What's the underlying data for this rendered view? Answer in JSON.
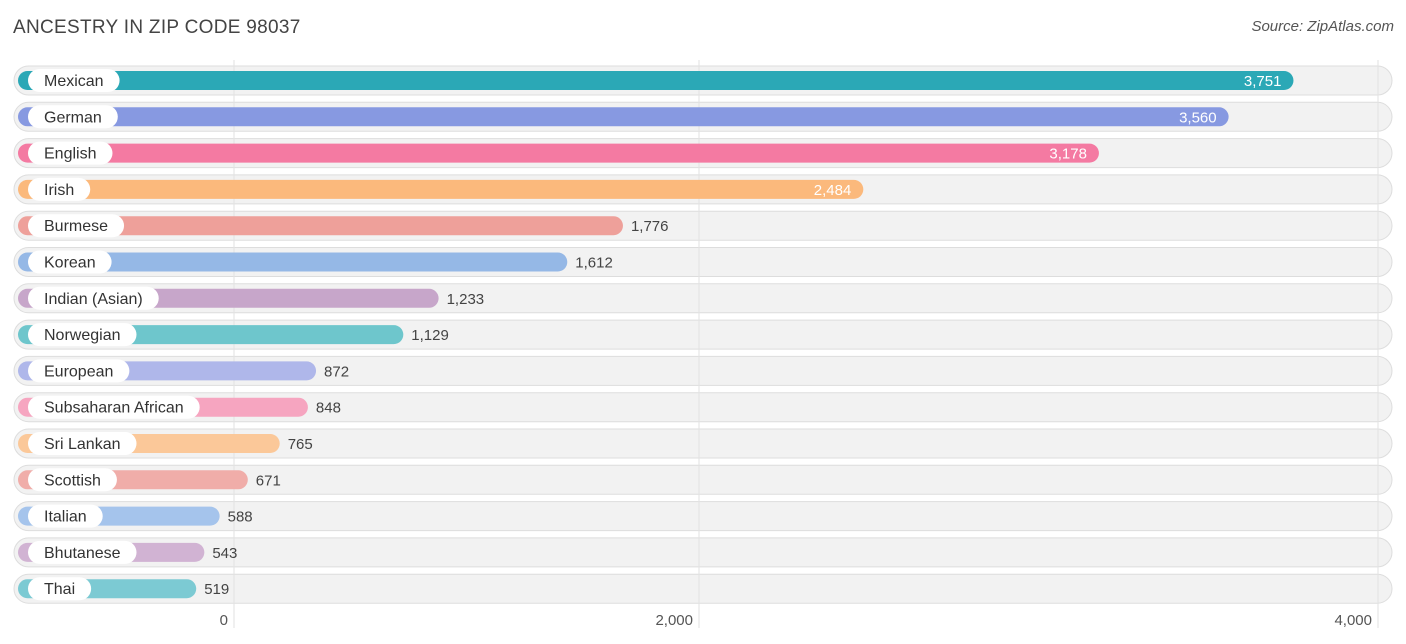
{
  "header": {
    "title": "ANCESTRY IN ZIP CODE 98037",
    "source": "Source: ZipAtlas.com"
  },
  "chart_data": {
    "type": "bar",
    "orientation": "horizontal",
    "title": "ANCESTRY IN ZIP CODE 98037",
    "xlabel": "",
    "ylabel": "",
    "xlim": [
      0,
      4000
    ],
    "ticks": [
      {
        "value": 0,
        "label": "0"
      },
      {
        "value": 2000,
        "label": "2,000"
      },
      {
        "value": 4000,
        "label": "4,000"
      }
    ],
    "grid": true,
    "bars": [
      {
        "category": "Mexican",
        "value": 3751,
        "label": "3,751",
        "color": "#2ba8b6"
      },
      {
        "category": "German",
        "value": 3560,
        "label": "3,560",
        "color": "#8799e1"
      },
      {
        "category": "English",
        "value": 3178,
        "label": "3,178",
        "color": "#f47aa2"
      },
      {
        "category": "Irish",
        "value": 2484,
        "label": "2,484",
        "color": "#fbb97c"
      },
      {
        "category": "Burmese",
        "value": 1776,
        "label": "1,776",
        "color": "#eea09a"
      },
      {
        "category": "Korean",
        "value": 1612,
        "label": "1,612",
        "color": "#95b8e6"
      },
      {
        "category": "Indian (Asian)",
        "value": 1233,
        "label": "1,233",
        "color": "#c7a6ca"
      },
      {
        "category": "Norwegian",
        "value": 1129,
        "label": "1,129",
        "color": "#6ec6cc"
      },
      {
        "category": "European",
        "value": 872,
        "label": "872",
        "color": "#afb7ea"
      },
      {
        "category": "Subsaharan African",
        "value": 848,
        "label": "848",
        "color": "#f6a5c0"
      },
      {
        "category": "Sri Lankan",
        "value": 765,
        "label": "765",
        "color": "#fbc899"
      },
      {
        "category": "Scottish",
        "value": 671,
        "label": "671",
        "color": "#f0ada9"
      },
      {
        "category": "Italian",
        "value": 588,
        "label": "588",
        "color": "#a5c4ec"
      },
      {
        "category": "Bhutanese",
        "value": 543,
        "label": "543",
        "color": "#d1b3d3"
      },
      {
        "category": "Thai",
        "value": 519,
        "label": "519",
        "color": "#7ccad3"
      }
    ]
  }
}
